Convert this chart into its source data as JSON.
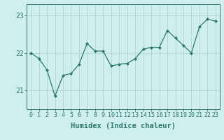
{
  "x": [
    0,
    1,
    2,
    3,
    4,
    5,
    6,
    7,
    8,
    9,
    10,
    11,
    12,
    13,
    14,
    15,
    16,
    17,
    18,
    19,
    20,
    21,
    22,
    23
  ],
  "y": [
    22.0,
    21.85,
    21.55,
    20.85,
    21.4,
    21.45,
    21.7,
    22.25,
    22.05,
    22.05,
    21.65,
    21.7,
    21.72,
    21.85,
    22.1,
    22.15,
    22.15,
    22.6,
    22.4,
    22.2,
    22.0,
    22.7,
    22.9,
    22.85
  ],
  "line_color": "#2a7a6a",
  "marker_color": "#2a7a6a",
  "bg_color": "#d0eeee",
  "grid_color": "#aad4d4",
  "xlabel": "Humidex (Indice chaleur)",
  "ylim": [
    20.5,
    23.3
  ],
  "xlim": [
    -0.5,
    23.5
  ],
  "yticks": [
    21,
    22,
    23
  ],
  "xticks": [
    0,
    1,
    2,
    3,
    4,
    5,
    6,
    7,
    8,
    9,
    10,
    11,
    12,
    13,
    14,
    15,
    16,
    17,
    18,
    19,
    20,
    21,
    22,
    23
  ],
  "tick_color": "#2a7a6a",
  "label_color": "#2a7a6a",
  "font_size_xlabel": 7.5,
  "font_size_ticks_x": 6,
  "font_size_ticks_y": 7,
  "grid_linewidth": 0.6,
  "line_linewidth": 0.9,
  "marker_size": 2.2
}
